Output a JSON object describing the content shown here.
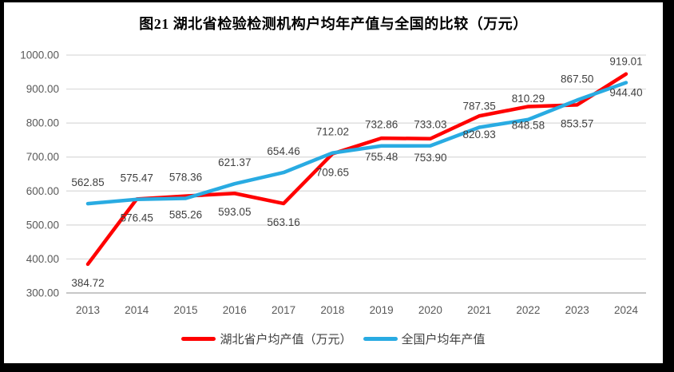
{
  "title": "图21 湖北省检验检测机构户均年产值与全国的比较（万元）",
  "chart_data": {
    "type": "line",
    "title": "图21 湖北省检验检测机构户均年产值与全国的比较（万元）",
    "categories": [
      "2013",
      "2014",
      "2015",
      "2016",
      "2017",
      "2018",
      "2019",
      "2020",
      "2021",
      "2022",
      "2023",
      "2024"
    ],
    "series": [
      {
        "id": "hubei",
        "name": "湖北省户均产值（万元）",
        "color": "#FF0000",
        "label_position": "below",
        "values": [
          384.72,
          576.45,
          585.26,
          593.05,
          563.16,
          709.65,
          755.48,
          753.9,
          820.93,
          848.58,
          853.57,
          944.4
        ]
      },
      {
        "id": "national",
        "name": "全国户均年产值",
        "color": "#29ABE2",
        "label_position": "above",
        "values": [
          562.85,
          575.47,
          578.36,
          621.37,
          654.46,
          712.02,
          732.86,
          733.03,
          787.35,
          810.29,
          867.5,
          919.01
        ]
      }
    ],
    "ylim": [
      300,
      1000
    ],
    "y_tick_values": [
      300,
      400,
      500,
      600,
      700,
      800,
      900,
      1000
    ],
    "y_tick_labels": [
      "300.00",
      "400.00",
      "500.00",
      "600.00",
      "700.00",
      "800.00",
      "900.00",
      "1000.00"
    ],
    "data_labels": true,
    "data_label_decimals": 2,
    "grid": "horizontal",
    "legend_position": "bottom",
    "colors": {
      "label_color": "#404040",
      "axis_label_color": "#595959",
      "gridline_color": "#D9D9D9",
      "axis_line_color": "#BFBFBF",
      "background": "#FFFFFF",
      "frame": "#000000"
    }
  }
}
